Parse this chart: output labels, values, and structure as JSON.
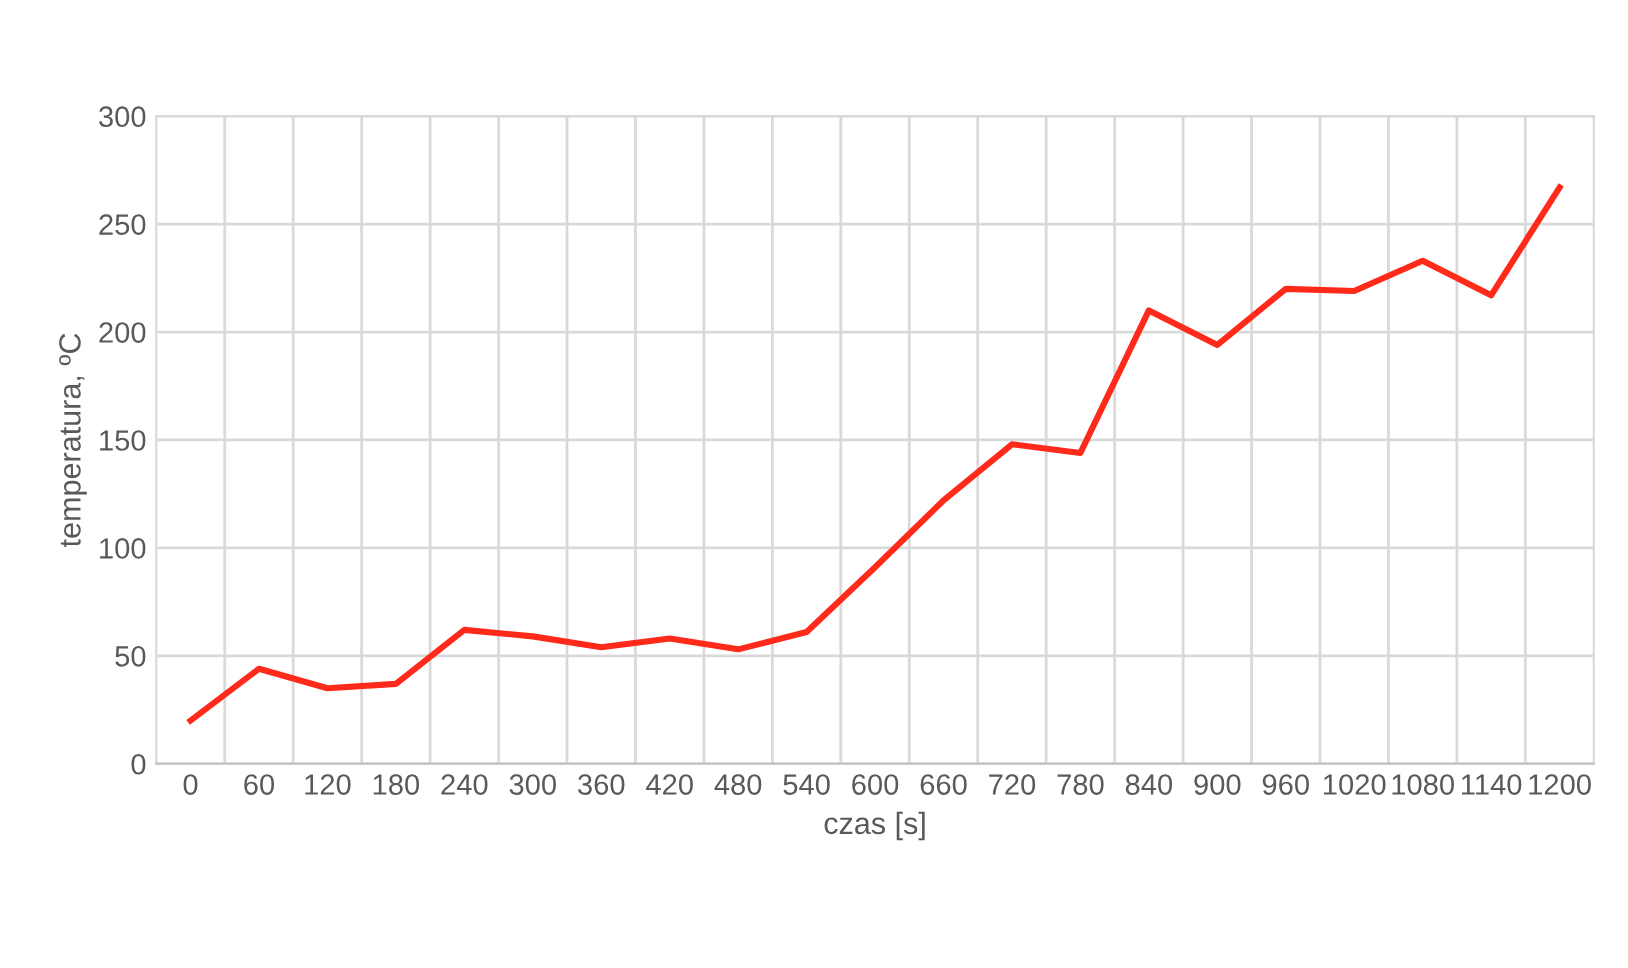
{
  "chart_data": {
    "type": "line",
    "xlabel": "czas [s]",
    "ylabel": "temperatura, ºC",
    "categories": [
      "0",
      "60",
      "120",
      "180",
      "240",
      "300",
      "360",
      "420",
      "480",
      "540",
      "600",
      "660",
      "720",
      "780",
      "840",
      "900",
      "960",
      "1020",
      "1080",
      "1140",
      "1200"
    ],
    "series": [
      {
        "color": "#ff2a1a",
        "values": [
          20,
          44,
          35,
          37,
          62,
          59,
          54,
          58,
          53,
          61,
          91,
          122,
          148,
          144,
          210,
          194,
          220,
          219,
          233,
          217,
          267
        ]
      }
    ],
    "ylim": [
      0,
      300
    ],
    "yticks": [
      0,
      50,
      100,
      150,
      200,
      250,
      300
    ],
    "grid": true,
    "marker": "none",
    "line_style": "solid"
  }
}
